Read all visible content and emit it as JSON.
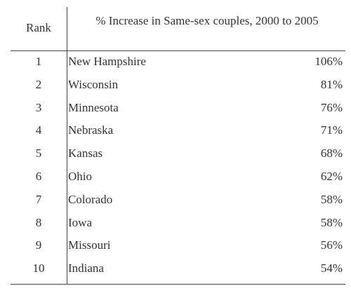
{
  "table": {
    "header": [
      "Rank",
      "% Increase in Same-sex couples, 2000 to 2005"
    ],
    "rows": [
      [
        "1",
        "New Hampshire",
        "106%"
      ],
      [
        "2",
        "Wisconsin",
        "81%"
      ],
      [
        "3",
        "Minnesota",
        "76%"
      ],
      [
        "4",
        "Nebraska",
        "71%"
      ],
      [
        "5",
        "Kansas",
        "68%"
      ],
      [
        "6",
        "Ohio",
        "62%"
      ],
      [
        "7",
        "Colorado",
        "58%"
      ],
      [
        "8",
        "Iowa",
        "58%"
      ],
      [
        "9",
        "Missouri",
        "56%"
      ],
      [
        "10",
        "Indiana",
        "54%"
      ]
    ]
  }
}
